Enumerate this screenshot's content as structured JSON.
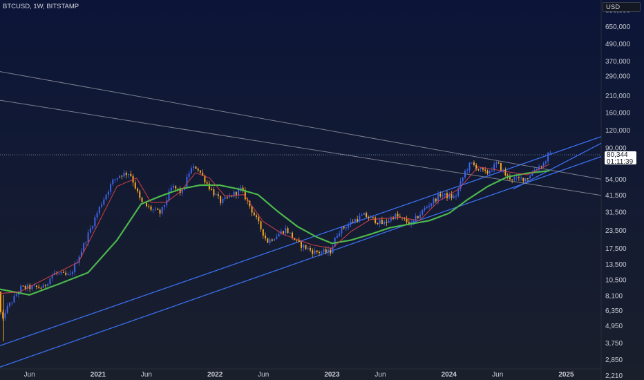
{
  "header": {
    "symbol": "BTCUSD, 1W, BITSTAMP",
    "currency": "USD"
  },
  "last_price": {
    "value": "80,344",
    "countdown": "01:11:39",
    "numeric": 80344
  },
  "colors": {
    "bull": "#3d63e8",
    "bear": "#f5a623",
    "ma_long": "#4cb84c",
    "ma_short": "#e0424a",
    "ma_mid": "#2f7d3a",
    "channel": "#3a6ff0",
    "trendline": "#8f939e",
    "axis_text": "#c8cbd2"
  },
  "chart_data": {
    "type": "candlestick",
    "title": "",
    "y_scale": "log",
    "ylim": [
      2050,
      1000000
    ],
    "x_range": [
      "2020-03-01",
      "2025-04-20"
    ],
    "y_ticks": [
      850000,
      650000,
      490000,
      370000,
      290000,
      210000,
      160000,
      120000,
      90000,
      54000,
      41500,
      31500,
      23500,
      17500,
      13500,
      10500,
      8100,
      6350,
      4950,
      3750,
      2850,
      2210
    ],
    "y_tick_labels": [
      "850,000",
      "650,000",
      "490,000",
      "370,000",
      "290,000",
      "210,000",
      "160,000",
      "120,000",
      "90,000",
      "54,000",
      "41,500",
      "31,500",
      "23,500",
      "17,500",
      "13,500",
      "10,500",
      "8,100",
      "6,350",
      "4,950",
      "3,750",
      "2,850",
      "2,210"
    ],
    "x_ticks": [
      {
        "date": "2020-06-01",
        "label": "Jun"
      },
      {
        "date": "2021-01-01",
        "label": "2021"
      },
      {
        "date": "2021-06-01",
        "label": "Jun"
      },
      {
        "date": "2022-01-01",
        "label": "2022"
      },
      {
        "date": "2022-06-01",
        "label": "Jun"
      },
      {
        "date": "2023-01-01",
        "label": "2023"
      },
      {
        "date": "2023-06-01",
        "label": "Jun"
      },
      {
        "date": "2024-01-01",
        "label": "2024"
      },
      {
        "date": "2024-06-01",
        "label": "Jun"
      },
      {
        "date": "2025-01-01",
        "label": "2025"
      }
    ],
    "price_path": [
      [
        "2020-03-01",
        8600
      ],
      [
        "2020-03-12",
        5000
      ],
      [
        "2020-03-22",
        6300
      ],
      [
        "2020-05-10",
        9200
      ],
      [
        "2020-07-20",
        9300
      ],
      [
        "2020-08-20",
        11700
      ],
      [
        "2020-10-10",
        11100
      ],
      [
        "2020-11-20",
        18000
      ],
      [
        "2020-12-28",
        29000
      ],
      [
        "2021-01-15",
        36000
      ],
      [
        "2021-02-20",
        52000
      ],
      [
        "2021-03-15",
        58000
      ],
      [
        "2021-04-15",
        60000
      ],
      [
        "2021-05-20",
        37000
      ],
      [
        "2021-06-22",
        33000
      ],
      [
        "2021-07-20",
        31000
      ],
      [
        "2021-08-25",
        48000
      ],
      [
        "2021-09-25",
        43000
      ],
      [
        "2021-10-20",
        63000
      ],
      [
        "2021-11-10",
        66000
      ],
      [
        "2021-12-20",
        47000
      ],
      [
        "2022-01-25",
        37000
      ],
      [
        "2022-03-28",
        46000
      ],
      [
        "2022-05-12",
        29000
      ],
      [
        "2022-06-18",
        19500
      ],
      [
        "2022-08-15",
        24000
      ],
      [
        "2022-09-20",
        19000
      ],
      [
        "2022-11-10",
        16500
      ],
      [
        "2022-12-31",
        16500
      ],
      [
        "2023-01-25",
        23000
      ],
      [
        "2023-03-20",
        28000
      ],
      [
        "2023-04-15",
        30000
      ],
      [
        "2023-06-15",
        26000
      ],
      [
        "2023-07-20",
        30000
      ],
      [
        "2023-09-10",
        26000
      ],
      [
        "2023-10-25",
        34000
      ],
      [
        "2023-12-10",
        42000
      ],
      [
        "2024-01-25",
        40000
      ],
      [
        "2024-02-25",
        61000
      ],
      [
        "2024-03-14",
        70000
      ],
      [
        "2024-05-01",
        59000
      ],
      [
        "2024-06-05",
        70000
      ],
      [
        "2024-07-05",
        56000
      ],
      [
        "2024-08-05",
        54000
      ],
      [
        "2024-09-05",
        55000
      ],
      [
        "2024-10-01",
        64000
      ],
      [
        "2024-10-30",
        70000
      ],
      [
        "2024-11-10",
        80344
      ]
    ],
    "series": [
      {
        "name": "",
        "kind": "moving-average",
        "color": "#4cb84c",
        "points": [
          [
            "2020-03-01",
            9000
          ],
          [
            "2020-06-01",
            8200
          ],
          [
            "2020-09-01",
            9800
          ],
          [
            "2020-12-01",
            11800
          ],
          [
            "2021-03-01",
            20000
          ],
          [
            "2021-05-15",
            36000
          ],
          [
            "2021-07-15",
            41000
          ],
          [
            "2021-09-15",
            46000
          ],
          [
            "2021-11-15",
            49000
          ],
          [
            "2022-01-15",
            49000
          ],
          [
            "2022-03-15",
            46000
          ],
          [
            "2022-05-15",
            42000
          ],
          [
            "2022-07-15",
            32000
          ],
          [
            "2022-09-15",
            25000
          ],
          [
            "2022-11-15",
            21000
          ],
          [
            "2023-01-01",
            19000
          ],
          [
            "2023-03-01",
            20000
          ],
          [
            "2023-05-01",
            22000
          ],
          [
            "2023-07-01",
            24500
          ],
          [
            "2023-09-01",
            26000
          ],
          [
            "2023-11-01",
            27500
          ],
          [
            "2024-01-01",
            31000
          ],
          [
            "2024-03-01",
            39000
          ],
          [
            "2024-05-01",
            48000
          ],
          [
            "2024-07-01",
            56000
          ],
          [
            "2024-09-01",
            59500
          ],
          [
            "2024-11-10",
            62000
          ]
        ]
      },
      {
        "name": "",
        "kind": "moving-average",
        "color": "#e0424a",
        "points": [
          [
            "2020-03-01",
            8400
          ],
          [
            "2020-05-01",
            8600
          ],
          [
            "2020-08-01",
            11000
          ],
          [
            "2020-11-01",
            14000
          ],
          [
            "2021-01-01",
            26000
          ],
          [
            "2021-03-01",
            48000
          ],
          [
            "2021-05-01",
            55000
          ],
          [
            "2021-06-15",
            37000
          ],
          [
            "2021-08-01",
            37000
          ],
          [
            "2021-09-15",
            44000
          ],
          [
            "2021-11-01",
            60000
          ],
          [
            "2021-12-15",
            55000
          ],
          [
            "2022-02-01",
            41000
          ],
          [
            "2022-04-01",
            42000
          ],
          [
            "2022-06-01",
            27000
          ],
          [
            "2022-08-01",
            22000
          ],
          [
            "2022-11-01",
            18500
          ],
          [
            "2023-01-01",
            17500
          ],
          [
            "2023-03-01",
            23000
          ],
          [
            "2023-05-01",
            28000
          ],
          [
            "2023-08-01",
            29000
          ],
          [
            "2023-10-01",
            27500
          ],
          [
            "2023-12-01",
            38000
          ],
          [
            "2024-02-01",
            46000
          ],
          [
            "2024-04-01",
            66000
          ],
          [
            "2024-07-01",
            61000
          ],
          [
            "2024-09-01",
            58000
          ],
          [
            "2024-11-10",
            69000
          ]
        ]
      }
    ],
    "drawn_lines": [
      {
        "kind": "channel",
        "from": [
          "2020-02-01",
          3400
        ],
        "to": [
          "2025-04-20",
          108000
        ]
      },
      {
        "kind": "channel",
        "from": [
          "2020-02-01",
          2400
        ],
        "to": [
          "2025-04-20",
          78000
        ]
      },
      {
        "kind": "channel",
        "from": [
          "2024-07-20",
          46000
        ],
        "to": [
          "2025-04-20",
          97000
        ]
      },
      {
        "kind": "trendline",
        "from": [
          "2020-02-01",
          320000
        ],
        "to": [
          "2025-04-20",
          54000
        ]
      },
      {
        "kind": "trendline",
        "from": [
          "2020-02-01",
          200000
        ],
        "to": [
          "2025-04-20",
          41500
        ]
      }
    ]
  }
}
